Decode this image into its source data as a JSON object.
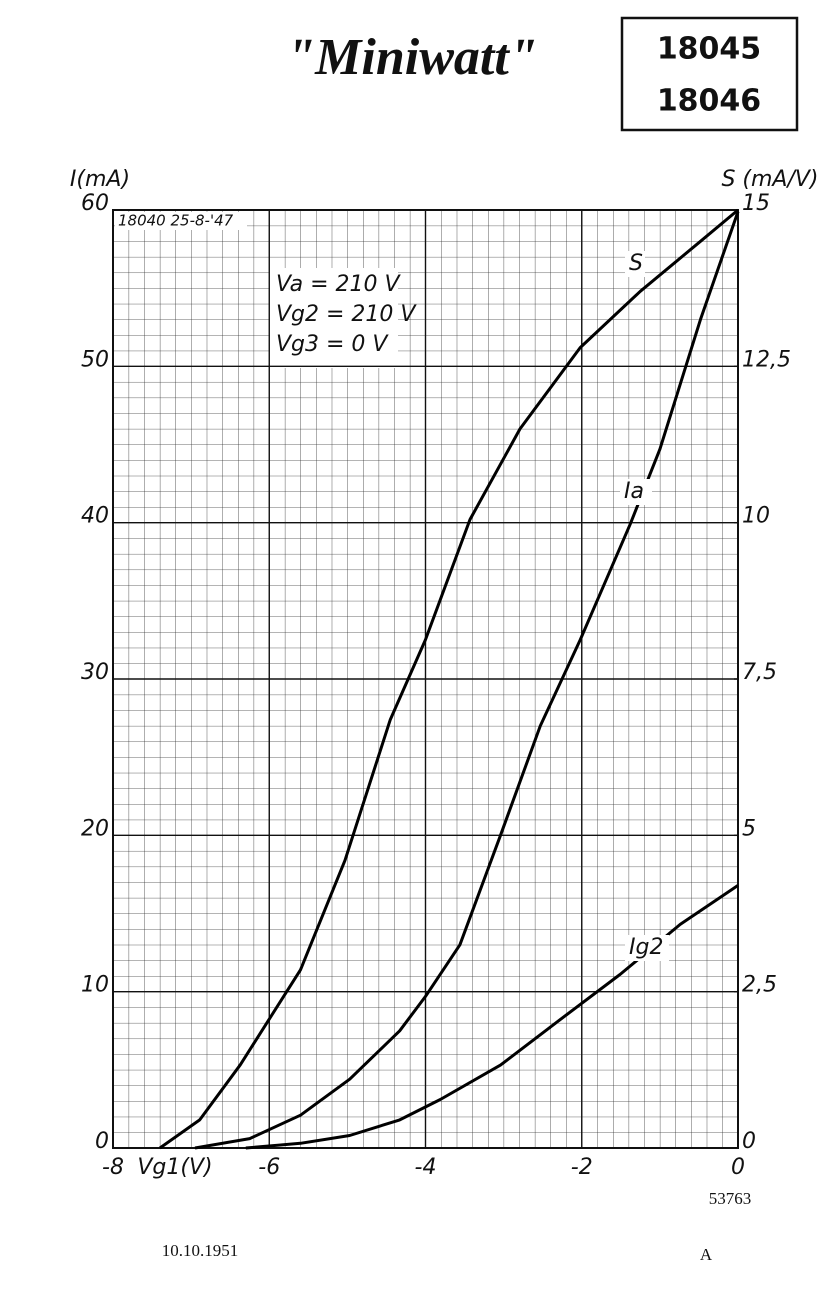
{
  "header": {
    "title": "\"Miniwatt\"",
    "codes": [
      "18045",
      "18046"
    ]
  },
  "chart_data": {
    "type": "line",
    "y_label": "I(mA)",
    "y2_label": "S (mA/V)",
    "x_label": "Vg1(V)",
    "stamp": "18040 25-8-'47",
    "conditions": [
      "Va = 210 V",
      "Vg2 = 210 V",
      "Vg3 = 0 V"
    ],
    "xlim": [
      -8,
      0
    ],
    "ylim": [
      0,
      60
    ],
    "y2lim": [
      0,
      15
    ],
    "xticks": [
      -8,
      -6,
      -4,
      -2,
      0
    ],
    "yticks": [
      0,
      10,
      20,
      30,
      40,
      50,
      60
    ],
    "y2ticks": [
      0,
      {
        "value": 2.5,
        "label": "2,5"
      },
      5,
      {
        "value": 7.5,
        "label": "7,5"
      },
      10,
      {
        "value": 12.5,
        "label": "12,5"
      },
      15
    ],
    "grid": true,
    "series": [
      {
        "name": "S",
        "axis": "y2",
        "color": "#000000",
        "x": [
          -7.4,
          -6.89,
          -6.37,
          -5.6,
          -5.03,
          -4.45,
          -4.0,
          -3.43,
          -2.79,
          -2.02,
          -1.25,
          -0.48,
          0
        ],
        "values": [
          0,
          0.45,
          1.33,
          2.85,
          4.6,
          6.85,
          8.13,
          10.05,
          11.5,
          12.8,
          13.7,
          14.5,
          15
        ]
      },
      {
        "name": "Ia",
        "color": "#000000",
        "x": [
          -6.95,
          -6.25,
          -5.6,
          -4.97,
          -4.33,
          -4.0,
          -3.56,
          -3.04,
          -2.53,
          -2.02,
          -1.38,
          -1.0,
          -0.48,
          0
        ],
        "values": [
          0,
          0.6,
          2.1,
          4.4,
          7.5,
          9.7,
          13,
          20,
          27,
          32.5,
          39.9,
          44.7,
          53,
          59.9
        ]
      },
      {
        "name": "Ig2",
        "color": "#000000",
        "x": [
          -6.3,
          -5.6,
          -4.97,
          -4.33,
          -3.81,
          -3.04,
          -2.28,
          -1.51,
          -0.74,
          0
        ],
        "values": [
          0,
          0.3,
          0.8,
          1.8,
          3.1,
          5.3,
          8.2,
          11.1,
          14.3,
          16.8
        ]
      }
    ],
    "figure_number": "53763"
  },
  "footer": {
    "date": "10.10.1951",
    "letter": "A"
  }
}
